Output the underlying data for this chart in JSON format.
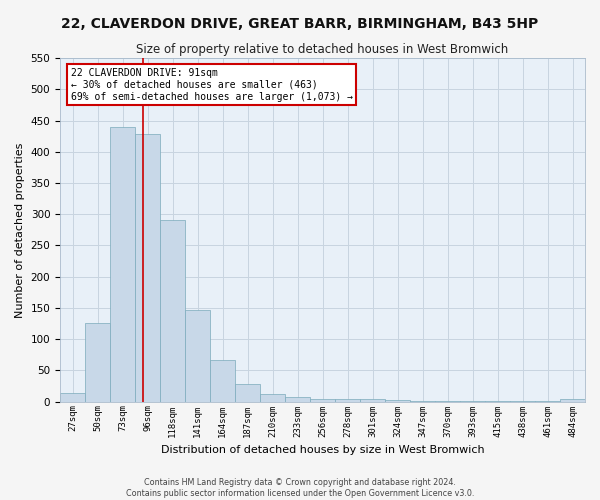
{
  "title": "22, CLAVERDON DRIVE, GREAT BARR, BIRMINGHAM, B43 5HP",
  "subtitle": "Size of property relative to detached houses in West Bromwich",
  "xlabel": "Distribution of detached houses by size in West Bromwich",
  "ylabel": "Number of detached properties",
  "footer_line1": "Contains HM Land Registry data © Crown copyright and database right 2024.",
  "footer_line2": "Contains public sector information licensed under the Open Government Licence v3.0.",
  "bin_labels": [
    "27sqm",
    "50sqm",
    "73sqm",
    "96sqm",
    "118sqm",
    "141sqm",
    "164sqm",
    "187sqm",
    "210sqm",
    "233sqm",
    "256sqm",
    "278sqm",
    "301sqm",
    "324sqm",
    "347sqm",
    "370sqm",
    "393sqm",
    "415sqm",
    "438sqm",
    "461sqm",
    "484sqm"
  ],
  "bar_values": [
    14,
    126,
    440,
    428,
    291,
    147,
    67,
    29,
    12,
    8,
    5,
    4,
    4,
    2,
    1,
    1,
    1,
    1,
    1,
    1,
    5
  ],
  "bar_color": "#c8d8e8",
  "bar_edge_color": "#7aaabb",
  "vline_x_index": 2.82,
  "annotation_text": "22 CLAVERDON DRIVE: 91sqm\n← 30% of detached houses are smaller (463)\n69% of semi-detached houses are larger (1,073) →",
  "vline_color": "#cc0000",
  "annotation_box_color": "#ffffff",
  "annotation_box_edge_color": "#cc0000",
  "grid_color": "#c8d4e0",
  "background_color": "#e8f0f8",
  "fig_background_color": "#f5f5f5",
  "ylim": [
    0,
    550
  ],
  "yticks": [
    0,
    50,
    100,
    150,
    200,
    250,
    300,
    350,
    400,
    450,
    500,
    550
  ],
  "title_fontsize": 10,
  "subtitle_fontsize": 8.5,
  "ylabel_fontsize": 8,
  "xlabel_fontsize": 8
}
